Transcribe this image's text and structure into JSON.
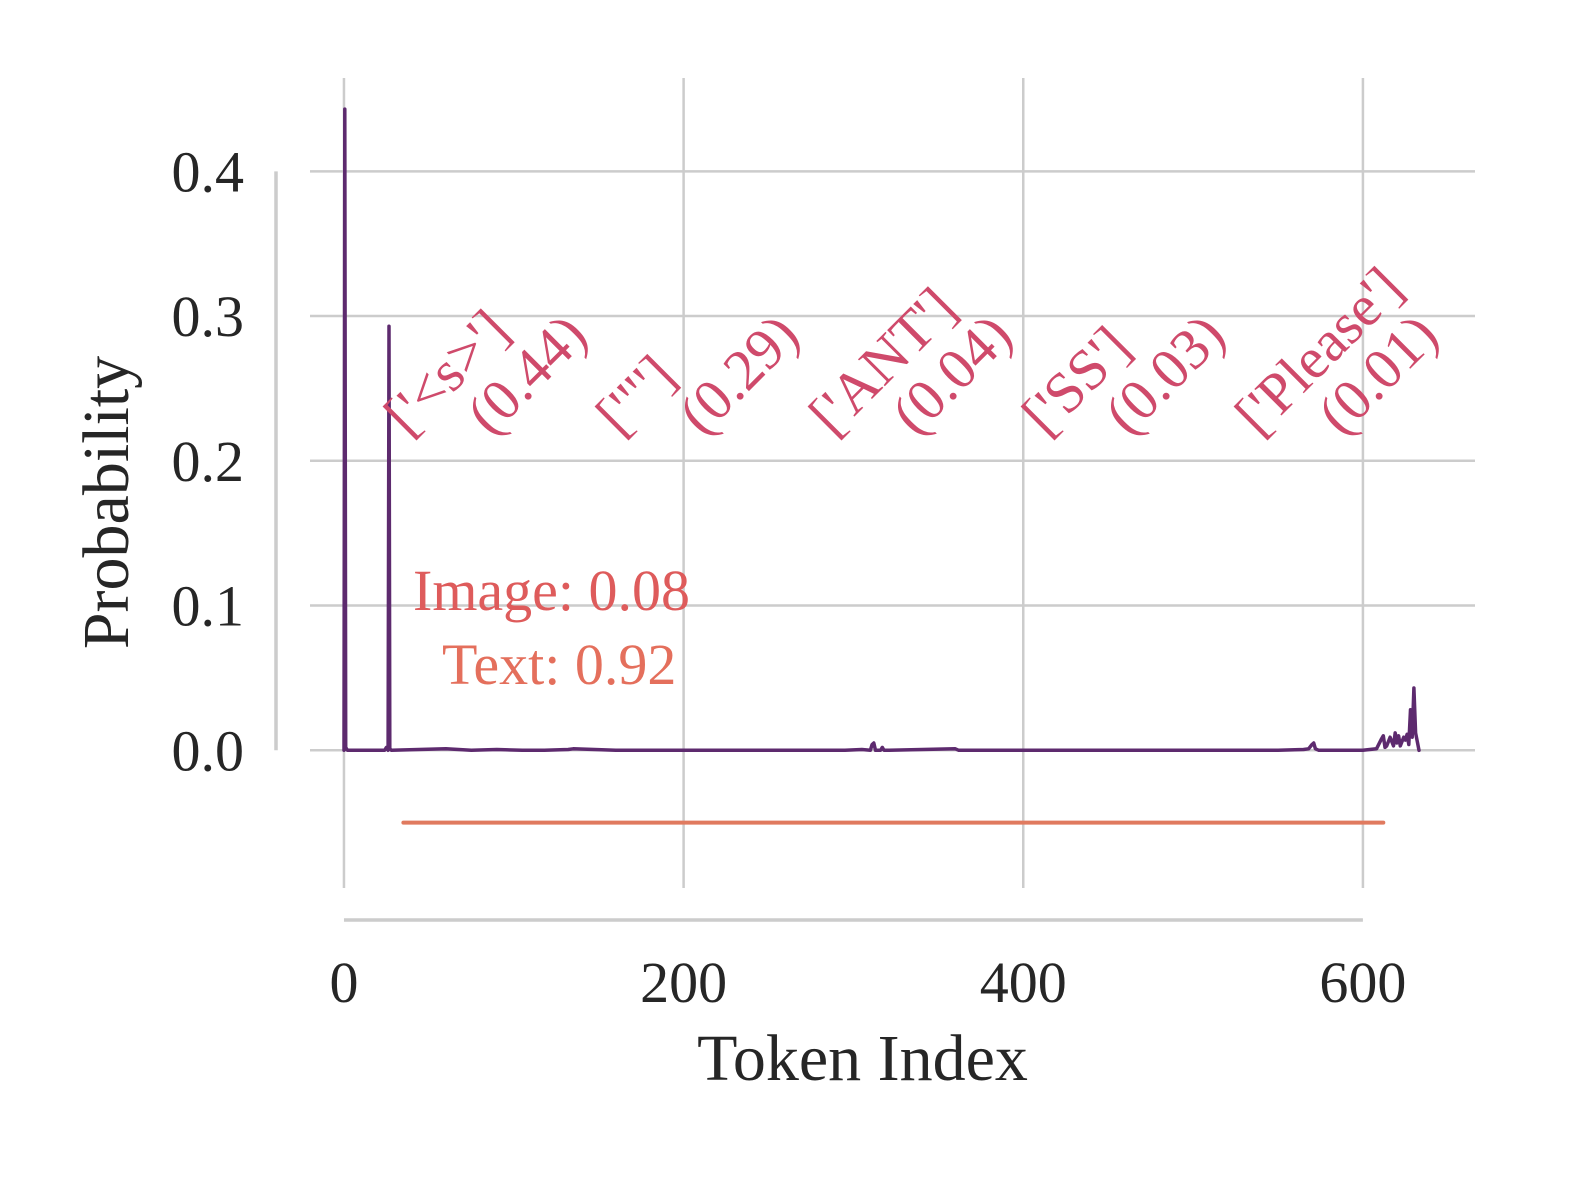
{
  "chart_data": {
    "type": "line",
    "xlabel": "Token Index",
    "ylabel": "Probability",
    "xlim": [
      -20,
      666
    ],
    "ylim": [
      -0.1,
      0.47
    ],
    "x_ticks": [
      0,
      200,
      400,
      600
    ],
    "y_ticks": [
      0.0,
      0.1,
      0.2,
      0.3,
      0.4
    ],
    "x_tick_labels": [
      "0",
      "200",
      "400",
      "600"
    ],
    "y_tick_labels": [
      "0.0",
      "0.1",
      "0.2",
      "0.3",
      "0.4"
    ],
    "grid": true,
    "series": [
      {
        "color": "#5d2a6e",
        "x": [
          0,
          0.5,
          1,
          2,
          24,
          25,
          26,
          26.5,
          27,
          28,
          60,
          75,
          90,
          105,
          118,
          132,
          135,
          160,
          200,
          250,
          295,
          305,
          310,
          311,
          312,
          313,
          316,
          317,
          318,
          320,
          360,
          362,
          400,
          450,
          500,
          550,
          565,
          568,
          570,
          571,
          572,
          574,
          600,
          608,
          611,
          612,
          613,
          614,
          616,
          618,
          619,
          620,
          621,
          622,
          624,
          625,
          626,
          627,
          628,
          629,
          630,
          631,
          632,
          633
        ],
        "y": [
          0.0,
          0.443,
          0.002,
          0.0,
          0.0,
          0.002,
          0.0,
          0.293,
          0.001,
          0.0,
          0.001,
          0.0,
          0.0005,
          0.0,
          0.0,
          0.0005,
          0.001,
          0.0,
          0.0,
          0.0,
          0.0,
          0.0005,
          0.0,
          0.004,
          0.005,
          0.0,
          0.0,
          0.002,
          0.0,
          0.0,
          0.001,
          0.0,
          0.0,
          0.0,
          0.0,
          0.0,
          0.0005,
          0.001,
          0.004,
          0.005,
          0.001,
          0.0,
          0.0,
          0.001,
          0.008,
          0.01,
          0.002,
          0.003,
          0.009,
          0.003,
          0.012,
          0.005,
          0.01,
          0.003,
          0.009,
          0.007,
          0.011,
          0.004,
          0.028,
          0.009,
          0.043,
          0.012,
          0.006,
          0.0
        ]
      },
      {
        "color": "#e07a5f",
        "x": [
          35,
          612
        ],
        "y": [
          -0.05,
          -0.05
        ]
      }
    ],
    "annotations": [
      {
        "text": "['<s>']\n(0.44)",
        "color": "#cf4a6b"
      },
      {
        "text": "['\"']\n(0.29)",
        "color": "#cf4a6b"
      },
      {
        "text": "['ANT']\n(0.04)",
        "color": "#cf4a6b"
      },
      {
        "text": "['SS']\n(0.03)",
        "color": "#cf4a6b"
      },
      {
        "text": "['Please']\n(0.01)",
        "color": "#cf4a6b"
      },
      {
        "text": "Image: 0.08",
        "color": "#de5b5b"
      },
      {
        "text": "Text: 0.92",
        "color": "#e46f5c"
      }
    ]
  }
}
